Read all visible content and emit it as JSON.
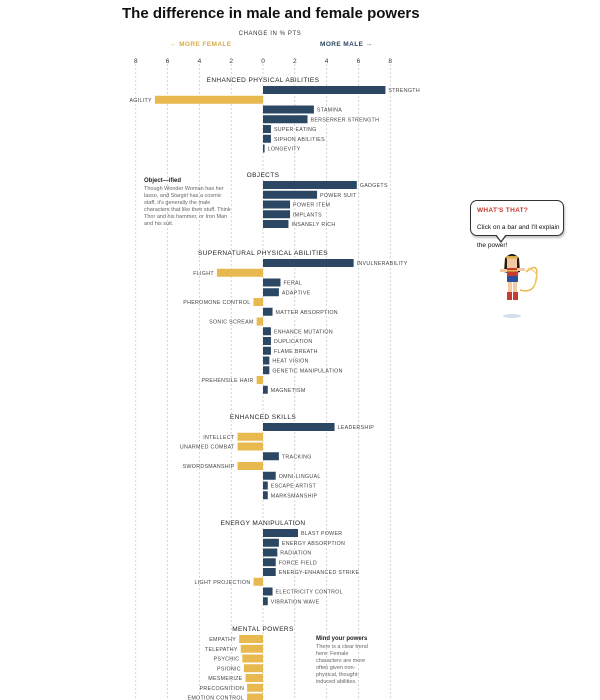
{
  "title": "The difference in male and female powers",
  "axis_title": "CHANGE IN % PTS",
  "more_female": "← MORE FEMALE",
  "more_male": "MORE MALE →",
  "colors": {
    "male": "#2c4763",
    "female": "#e8b94f",
    "grid": "#bbbbbb"
  },
  "notes": {
    "objects_head": "Object—ified",
    "objects_body": "Though Wonder Woman has her lasso, and Stargirl has a cosmic staff, it's generally the male characters that like their stuff. Think Thor and his hammer, or Iron Man and his suit.",
    "mental_head": "Mind your powers",
    "mental_body": "There is a clear trend here: Female characters are more often given non-physical, thought-induced abilities."
  },
  "bubble": {
    "title": "WHAT'S THAT?",
    "body": "Click on a bar and I'll explain the power!"
  },
  "hero_icon": "wonder-woman-character-icon",
  "chart_data": {
    "type": "bar",
    "orientation": "horizontal",
    "xlabel": "CHANGE IN % PTS",
    "xlim": [
      -8,
      8
    ],
    "xticks": [
      "8",
      "6",
      "4",
      "2",
      "0",
      "2",
      "4",
      "6",
      "8"
    ],
    "groups": [
      {
        "name": "ENHANCED PHYSICAL ABILITIES",
        "items": [
          {
            "label": "STRENGTH",
            "value": 7.7
          },
          {
            "label": "AGILITY",
            "value": -6.8
          },
          {
            "label": "STAMINA",
            "value": 3.2
          },
          {
            "label": "BERSERKER STRENGTH",
            "value": 2.8
          },
          {
            "label": "SUPER EATING",
            "value": 0.5
          },
          {
            "label": "SIPHON ABILITIES",
            "value": 0.5
          },
          {
            "label": "LONGEVITY",
            "value": 0.1
          }
        ]
      },
      {
        "name": "OBJECTS",
        "items": [
          {
            "label": "GADGETS",
            "value": 5.9
          },
          {
            "label": "POWER SUIT",
            "value": 3.4
          },
          {
            "label": "POWER ITEM",
            "value": 1.7
          },
          {
            "label": "IMPLANTS",
            "value": 1.7
          },
          {
            "label": "INSANELY RICH",
            "value": 1.6
          }
        ]
      },
      {
        "name": "SUPERNATURAL PHYSICAL ABILITIES",
        "items": [
          {
            "label": "INVULNERABILITY",
            "value": 5.7
          },
          {
            "label": "FLIGHT",
            "value": -2.9
          },
          {
            "label": "FERAL",
            "value": 1.1
          },
          {
            "label": "ADAPTIVE",
            "value": 1.0
          },
          {
            "label": "PHEROMONE CONTROL",
            "value": -0.6
          },
          {
            "label": "MATTER ABSORPTION",
            "value": 0.6
          },
          {
            "label": "SONIC SCREAM",
            "value": -0.4
          },
          {
            "label": "ENHANCE MUTATION",
            "value": 0.5
          },
          {
            "label": "DUPLICATION",
            "value": 0.5
          },
          {
            "label": "FLAME BREATH",
            "value": 0.5
          },
          {
            "label": "HEAT VISION",
            "value": 0.4
          },
          {
            "label": "GENETIC MANIPULATION",
            "value": 0.4
          },
          {
            "label": "PREHENSILE HAIR",
            "value": -0.4
          },
          {
            "label": "MAGNETISM",
            "value": 0.3
          }
        ]
      },
      {
        "name": "ENHANCED SKILLS",
        "items": [
          {
            "label": "LEADERSHIP",
            "value": 4.5
          },
          {
            "label": "INTELLECT",
            "value": -1.6
          },
          {
            "label": "UNARMED COMBAT",
            "value": -1.6
          },
          {
            "label": "TRACKING",
            "value": 1.0
          },
          {
            "label": "SWORDSMANSHIP",
            "value": -1.6
          },
          {
            "label": "OMNI-LINGUAL",
            "value": 0.8
          },
          {
            "label": "ESCAPE ARTIST",
            "value": 0.3
          },
          {
            "label": "MARKSMANSHIP",
            "value": 0.3
          }
        ]
      },
      {
        "name": "ENERGY MANIPULATION",
        "items": [
          {
            "label": "BLAST POWER",
            "value": 2.2
          },
          {
            "label": "ENERGY ABSORPTION",
            "value": 1.0
          },
          {
            "label": "RADIATION",
            "value": 0.9
          },
          {
            "label": "FORCE FIELD",
            "value": 0.8
          },
          {
            "label": "ENERGY-ENHANCED STRIKE",
            "value": 0.8
          },
          {
            "label": "LIGHT PROJECTION",
            "value": -0.6
          },
          {
            "label": "ELECTRICITY CONTROL",
            "value": 0.6
          },
          {
            "label": "VIBRATION WAVE",
            "value": 0.3
          }
        ]
      },
      {
        "name": "MENTAL POWERS",
        "items": [
          {
            "label": "EMPATHY",
            "value": -1.5
          },
          {
            "label": "TELEPATHY",
            "value": -1.4
          },
          {
            "label": "PSYCHIC",
            "value": -1.3
          },
          {
            "label": "PSIONIC",
            "value": -1.2
          },
          {
            "label": "MESMERIZE",
            "value": -1.1
          },
          {
            "label": "PRECOGNITION",
            "value": -1.0
          },
          {
            "label": "EMOTION CONTROL",
            "value": -1.0
          }
        ]
      }
    ]
  }
}
